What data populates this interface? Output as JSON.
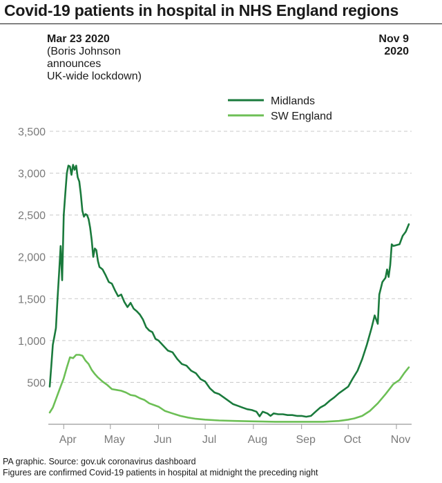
{
  "title": "Covid-19 patients in hospital in NHS England regions",
  "annotations": {
    "start": {
      "date": "Mar 23 2020",
      "lines": [
        "(Boris Johnson",
        "announces",
        "UK-wide lockdown)"
      ]
    },
    "end": {
      "lines": [
        "Nov 9",
        "2020"
      ]
    }
  },
  "footer": {
    "source": "PA graphic. Source: gov.uk coronavirus dashboard",
    "note": "Figures are confirmed Covid-19 patients in hospital at midnight the preceding night"
  },
  "colors": {
    "midlands": "#1a7a3c",
    "sw_england": "#6cbf55",
    "grid": "#c8c8c8",
    "axis": "#999999",
    "tick_text": "#7a7a7a"
  },
  "chart_data": {
    "type": "line",
    "x_range": [
      "2020-03-23",
      "2020-11-09"
    ],
    "ylim": [
      0,
      3500
    ],
    "y_ticks": [
      500,
      1000,
      1500,
      2000,
      2500,
      3000,
      3500
    ],
    "y_tick_labels": [
      "500",
      "1,000",
      "1,500",
      "2,000",
      "2,500",
      "3,000",
      "3,500"
    ],
    "x_ticks": [
      {
        "date": "2020-04-01",
        "label": "Apr"
      },
      {
        "date": "2020-05-01",
        "label": "May"
      },
      {
        "date": "2020-06-01",
        "label": "Jun"
      },
      {
        "date": "2020-07-01",
        "label": "Jul"
      },
      {
        "date": "2020-08-01",
        "label": "Aug"
      },
      {
        "date": "2020-09-01",
        "label": "Sep"
      },
      {
        "date": "2020-10-01",
        "label": "Oct"
      },
      {
        "date": "2020-11-01",
        "label": "Nov"
      }
    ],
    "grid": true,
    "legend": "top-center",
    "series": [
      {
        "name": "Midlands",
        "color": "#1a7a3c",
        "points": [
          [
            "2020-03-23",
            450
          ],
          [
            "2020-03-24",
            700
          ],
          [
            "2020-03-25",
            950
          ],
          [
            "2020-03-26",
            1050
          ],
          [
            "2020-03-27",
            1150
          ],
          [
            "2020-03-28",
            1500
          ],
          [
            "2020-03-29",
            1800
          ],
          [
            "2020-03-30",
            2130
          ],
          [
            "2020-03-31",
            1720
          ],
          [
            "2020-04-01",
            2500
          ],
          [
            "2020-04-02",
            2750
          ],
          [
            "2020-04-03",
            3000
          ],
          [
            "2020-04-04",
            3090
          ],
          [
            "2020-04-05",
            3080
          ],
          [
            "2020-04-06",
            2980
          ],
          [
            "2020-04-07",
            3100
          ],
          [
            "2020-04-08",
            3040
          ],
          [
            "2020-04-09",
            3090
          ],
          [
            "2020-04-10",
            2950
          ],
          [
            "2020-04-11",
            2900
          ],
          [
            "2020-04-12",
            2750
          ],
          [
            "2020-04-13",
            2550
          ],
          [
            "2020-04-14",
            2480
          ],
          [
            "2020-04-15",
            2510
          ],
          [
            "2020-04-16",
            2500
          ],
          [
            "2020-04-17",
            2450
          ],
          [
            "2020-04-18",
            2350
          ],
          [
            "2020-04-19",
            2200
          ],
          [
            "2020-04-20",
            2000
          ],
          [
            "2020-04-21",
            2100
          ],
          [
            "2020-04-22",
            2080
          ],
          [
            "2020-04-23",
            1950
          ],
          [
            "2020-04-24",
            1880
          ],
          [
            "2020-04-26",
            1850
          ],
          [
            "2020-04-28",
            1780
          ],
          [
            "2020-04-30",
            1700
          ],
          [
            "2020-05-02",
            1680
          ],
          [
            "2020-05-04",
            1600
          ],
          [
            "2020-05-06",
            1530
          ],
          [
            "2020-05-08",
            1550
          ],
          [
            "2020-05-10",
            1460
          ],
          [
            "2020-05-12",
            1400
          ],
          [
            "2020-05-14",
            1450
          ],
          [
            "2020-05-16",
            1380
          ],
          [
            "2020-05-18",
            1350
          ],
          [
            "2020-05-20",
            1310
          ],
          [
            "2020-05-22",
            1250
          ],
          [
            "2020-05-24",
            1160
          ],
          [
            "2020-05-26",
            1120
          ],
          [
            "2020-05-28",
            1100
          ],
          [
            "2020-05-30",
            1020
          ],
          [
            "2020-06-01",
            1000
          ],
          [
            "2020-06-04",
            940
          ],
          [
            "2020-06-07",
            880
          ],
          [
            "2020-06-10",
            860
          ],
          [
            "2020-06-13",
            780
          ],
          [
            "2020-06-16",
            720
          ],
          [
            "2020-06-19",
            700
          ],
          [
            "2020-06-22",
            640
          ],
          [
            "2020-06-25",
            610
          ],
          [
            "2020-06-28",
            540
          ],
          [
            "2020-07-01",
            510
          ],
          [
            "2020-07-04",
            430
          ],
          [
            "2020-07-07",
            380
          ],
          [
            "2020-07-10",
            360
          ],
          [
            "2020-07-13",
            320
          ],
          [
            "2020-07-16",
            280
          ],
          [
            "2020-07-19",
            240
          ],
          [
            "2020-07-22",
            220
          ],
          [
            "2020-07-25",
            200
          ],
          [
            "2020-07-28",
            180
          ],
          [
            "2020-07-31",
            170
          ],
          [
            "2020-08-03",
            150
          ],
          [
            "2020-08-05",
            95
          ],
          [
            "2020-08-07",
            150
          ],
          [
            "2020-08-10",
            130
          ],
          [
            "2020-08-12",
            100
          ],
          [
            "2020-08-14",
            130
          ],
          [
            "2020-08-17",
            120
          ],
          [
            "2020-08-20",
            120
          ],
          [
            "2020-08-23",
            110
          ],
          [
            "2020-08-26",
            110
          ],
          [
            "2020-08-29",
            100
          ],
          [
            "2020-09-01",
            100
          ],
          [
            "2020-09-04",
            90
          ],
          [
            "2020-09-07",
            100
          ],
          [
            "2020-09-10",
            150
          ],
          [
            "2020-09-13",
            200
          ],
          [
            "2020-09-16",
            230
          ],
          [
            "2020-09-19",
            280
          ],
          [
            "2020-09-22",
            320
          ],
          [
            "2020-09-25",
            370
          ],
          [
            "2020-09-28",
            410
          ],
          [
            "2020-10-01",
            450
          ],
          [
            "2020-10-04",
            550
          ],
          [
            "2020-10-07",
            640
          ],
          [
            "2020-10-10",
            780
          ],
          [
            "2020-10-13",
            950
          ],
          [
            "2020-10-16",
            1150
          ],
          [
            "2020-10-18",
            1300
          ],
          [
            "2020-10-20",
            1200
          ],
          [
            "2020-10-21",
            1550
          ],
          [
            "2020-10-23",
            1700
          ],
          [
            "2020-10-25",
            1750
          ],
          [
            "2020-10-26",
            1850
          ],
          [
            "2020-10-27",
            1760
          ],
          [
            "2020-10-28",
            1900
          ],
          [
            "2020-10-29",
            2150
          ],
          [
            "2020-10-30",
            2130
          ],
          [
            "2020-11-01",
            2140
          ],
          [
            "2020-11-03",
            2150
          ],
          [
            "2020-11-05",
            2250
          ],
          [
            "2020-11-07",
            2300
          ],
          [
            "2020-11-09",
            2390
          ]
        ]
      },
      {
        "name": "SW England",
        "color": "#6cbf55",
        "points": [
          [
            "2020-03-23",
            140
          ],
          [
            "2020-03-25",
            200
          ],
          [
            "2020-03-27",
            300
          ],
          [
            "2020-03-29",
            400
          ],
          [
            "2020-04-01",
            550
          ],
          [
            "2020-04-03",
            680
          ],
          [
            "2020-04-05",
            800
          ],
          [
            "2020-04-07",
            790
          ],
          [
            "2020-04-09",
            830
          ],
          [
            "2020-04-11",
            830
          ],
          [
            "2020-04-13",
            820
          ],
          [
            "2020-04-15",
            760
          ],
          [
            "2020-04-17",
            720
          ],
          [
            "2020-04-19",
            650
          ],
          [
            "2020-04-21",
            600
          ],
          [
            "2020-04-23",
            560
          ],
          [
            "2020-04-26",
            510
          ],
          [
            "2020-04-29",
            470
          ],
          [
            "2020-05-02",
            420
          ],
          [
            "2020-05-05",
            410
          ],
          [
            "2020-05-08",
            400
          ],
          [
            "2020-05-11",
            380
          ],
          [
            "2020-05-14",
            350
          ],
          [
            "2020-05-17",
            340
          ],
          [
            "2020-05-20",
            310
          ],
          [
            "2020-05-23",
            290
          ],
          [
            "2020-05-26",
            250
          ],
          [
            "2020-05-29",
            230
          ],
          [
            "2020-06-01",
            210
          ],
          [
            "2020-06-05",
            160
          ],
          [
            "2020-06-10",
            130
          ],
          [
            "2020-06-15",
            100
          ],
          [
            "2020-06-20",
            80
          ],
          [
            "2020-06-25",
            65
          ],
          [
            "2020-07-01",
            55
          ],
          [
            "2020-07-10",
            45
          ],
          [
            "2020-07-20",
            40
          ],
          [
            "2020-08-01",
            35
          ],
          [
            "2020-08-15",
            30
          ],
          [
            "2020-09-01",
            30
          ],
          [
            "2020-09-15",
            30
          ],
          [
            "2020-09-25",
            40
          ],
          [
            "2020-10-01",
            55
          ],
          [
            "2020-10-05",
            70
          ],
          [
            "2020-10-10",
            100
          ],
          [
            "2020-10-15",
            160
          ],
          [
            "2020-10-20",
            250
          ],
          [
            "2020-10-25",
            360
          ],
          [
            "2020-10-30",
            480
          ],
          [
            "2020-11-03",
            530
          ],
          [
            "2020-11-06",
            610
          ],
          [
            "2020-11-09",
            680
          ]
        ]
      }
    ]
  }
}
